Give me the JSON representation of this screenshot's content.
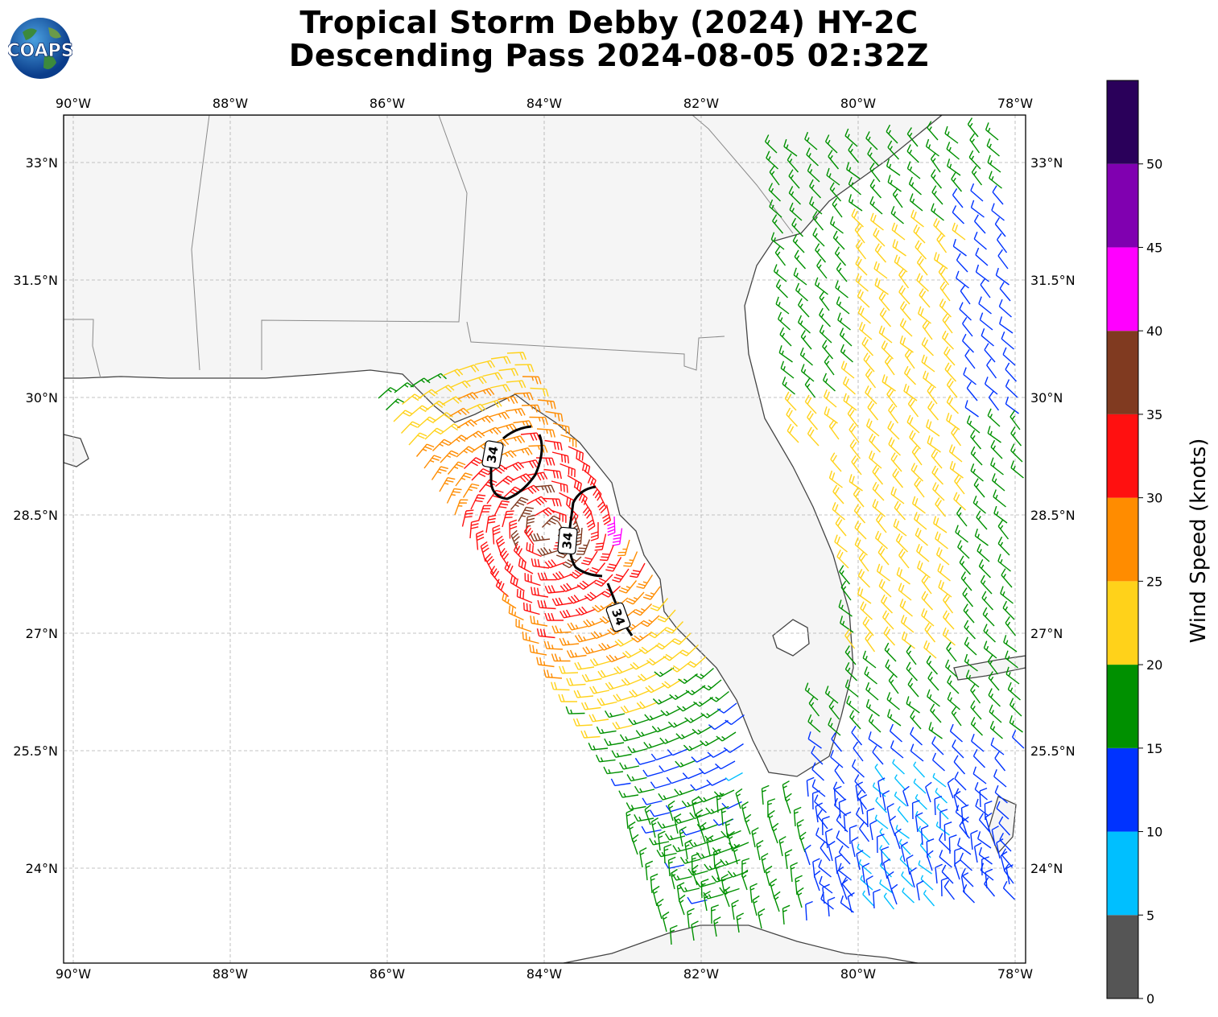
{
  "header": {
    "title_line1": "Tropical Storm Debby (2024) HY-2C",
    "title_line2": "Descending Pass 2024-08-05 02:32Z",
    "logo_text": "COAPS"
  },
  "map": {
    "lon_ticks": [
      "90°W",
      "88°W",
      "86°W",
      "84°W",
      "82°W",
      "80°W",
      "78°W"
    ],
    "lat_ticks": [
      "33°N",
      "31.5°N",
      "30°N",
      "28.5°N",
      "27°N",
      "25.5°N",
      "24°N"
    ],
    "contour_labels": [
      "34",
      "34",
      "34"
    ],
    "contour_value_kt": 34
  },
  "colorbar": {
    "label": "Wind Speed (knots)",
    "ticks": [
      "0",
      "5",
      "10",
      "15",
      "20",
      "25",
      "30",
      "35",
      "40",
      "45",
      "50"
    ],
    "bands": [
      {
        "from": 0,
        "to": 5,
        "color": "#555555"
      },
      {
        "from": 5,
        "to": 10,
        "color": "#00bfff"
      },
      {
        "from": 10,
        "to": 15,
        "color": "#0033ff"
      },
      {
        "from": 15,
        "to": 20,
        "color": "#009000"
      },
      {
        "from": 20,
        "to": 25,
        "color": "#ffd21a"
      },
      {
        "from": 25,
        "to": 30,
        "color": "#ff8c00"
      },
      {
        "from": 30,
        "to": 35,
        "color": "#ff1010"
      },
      {
        "from": 35,
        "to": 40,
        "color": "#803a20"
      },
      {
        "from": 40,
        "to": 45,
        "color": "#ff00ff"
      },
      {
        "from": 45,
        "to": 50,
        "color": "#8000b0"
      },
      {
        "from": 50,
        "to": 55,
        "color": "#2a005a"
      }
    ]
  }
}
